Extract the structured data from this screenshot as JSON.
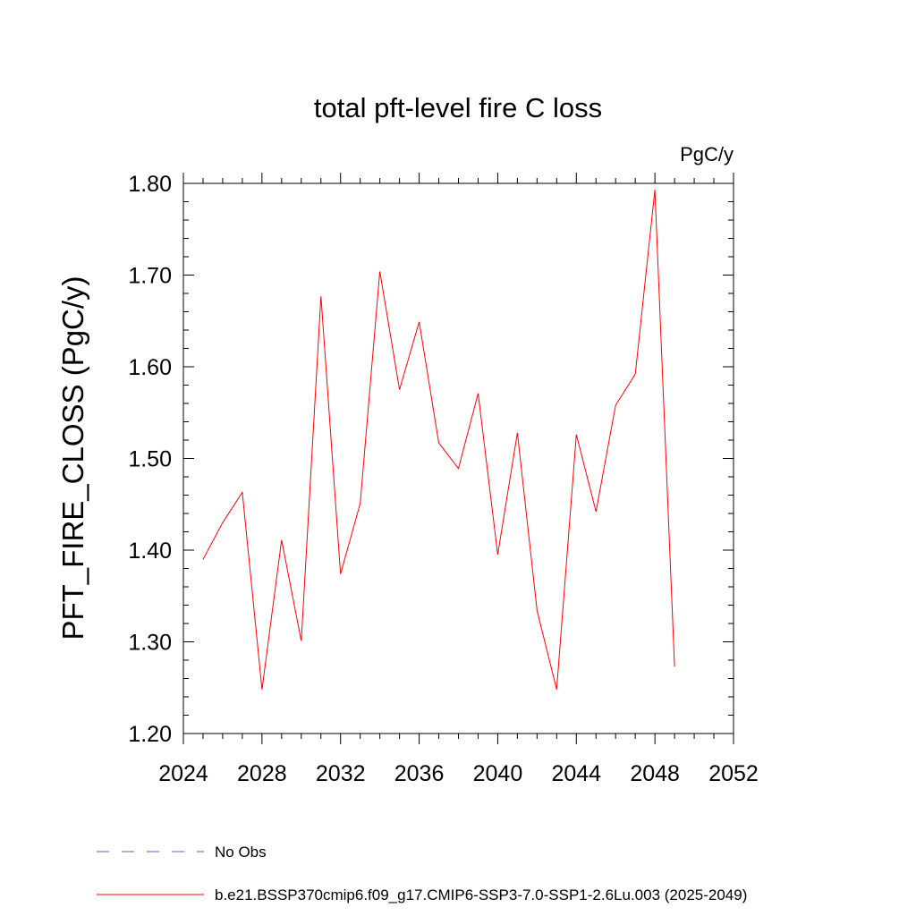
{
  "chart_data": {
    "type": "line",
    "title": "total pft-level fire C loss",
    "units_label": "PgC/y",
    "xlabel": "",
    "ylabel": "PFT_FIRE_CLOSS  (PgC/y)",
    "xlim": [
      2024,
      2052
    ],
    "ylim": [
      1.2,
      1.8
    ],
    "x_ticks": [
      2024,
      2028,
      2032,
      2036,
      2040,
      2044,
      2048,
      2052
    ],
    "x_tick_labels": [
      "2024",
      "2028",
      "2032",
      "2036",
      "2040",
      "2044",
      "2048",
      "2052"
    ],
    "y_ticks": [
      1.2,
      1.3,
      1.4,
      1.5,
      1.6,
      1.7,
      1.8
    ],
    "y_tick_labels": [
      "1.20",
      "1.30",
      "1.40",
      "1.50",
      "1.60",
      "1.70",
      "1.80"
    ],
    "grid": false,
    "legend_position": "bottom",
    "series": [
      {
        "name": "b.e21.BSSP370cmip6.f09_g17.CMIP6-SSP3-7.0-SSP1-2.6Lu.003 (2025-2049)",
        "color": "#ff0000",
        "style": "solid",
        "x": [
          2025,
          2026,
          2027,
          2028,
          2029,
          2030,
          2031,
          2032,
          2033,
          2034,
          2035,
          2036,
          2037,
          2038,
          2039,
          2040,
          2041,
          2042,
          2043,
          2044,
          2045,
          2046,
          2047,
          2048,
          2049
        ],
        "values": [
          1.39,
          1.43,
          1.463,
          1.248,
          1.411,
          1.301,
          1.677,
          1.374,
          1.451,
          1.704,
          1.575,
          1.649,
          1.517,
          1.489,
          1.571,
          1.395,
          1.528,
          1.334,
          1.248,
          1.526,
          1.442,
          1.558,
          1.592,
          1.793,
          1.273
        ]
      }
    ],
    "legend": [
      {
        "label": "No Obs",
        "color": "#6a5acd",
        "style": "dashed"
      },
      {
        "label": "b.e21.BSSP370cmip6.f09_g17.CMIP6-SSP3-7.0-SSP1-2.6Lu.003 (2025-2049)",
        "color": "#ff0000",
        "style": "solid"
      }
    ]
  }
}
